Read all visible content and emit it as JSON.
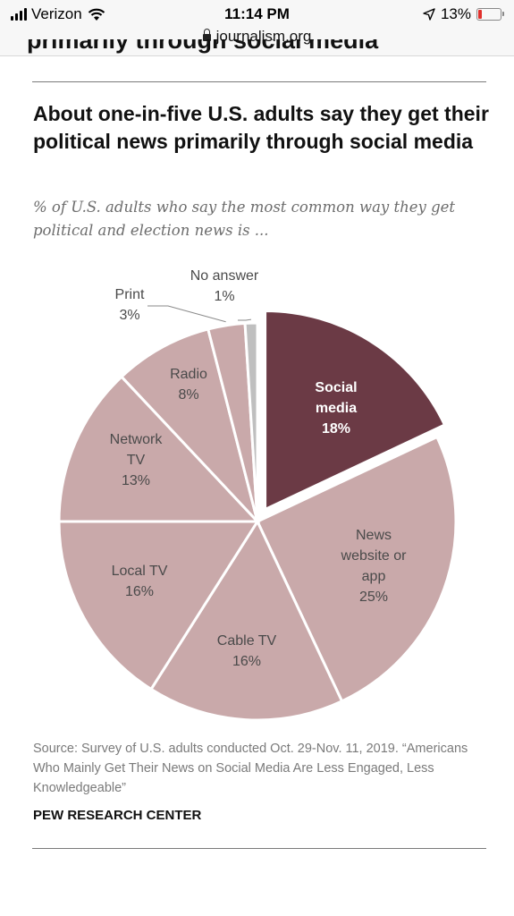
{
  "status_bar": {
    "carrier": "Verizon",
    "time": "11:14 PM",
    "battery": "13%",
    "url": "journalism.org",
    "icons": [
      "signal-icon",
      "wifi-icon",
      "location-arrow-icon",
      "battery-icon",
      "lock-icon"
    ]
  },
  "article": {
    "cut_heading": "primarily through social media"
  },
  "chart_data": {
    "type": "pie",
    "title": "About one-in-five U.S. adults say they get their political news primarily through social media",
    "subtitle": "% of U.S. adults who say the most common way they get political and election news is ...",
    "slices": [
      {
        "name": "Social media",
        "value": 18,
        "label": "18%",
        "color": "#6b3a45",
        "highlighted": true
      },
      {
        "name": "News website or app",
        "value": 25,
        "label": "25%",
        "color": "#c9a9aa"
      },
      {
        "name": "Cable TV",
        "value": 16,
        "label": "16%",
        "color": "#c9a9aa"
      },
      {
        "name": "Local TV",
        "value": 16,
        "label": "16%",
        "color": "#c9a9aa"
      },
      {
        "name": "Network TV",
        "value": 13,
        "label": "13%",
        "color": "#c9a9aa"
      },
      {
        "name": "Radio",
        "value": 8,
        "label": "8%",
        "color": "#c9a9aa"
      },
      {
        "name": "Print",
        "value": 3,
        "label": "3%",
        "color": "#c9a9aa"
      },
      {
        "name": "No answer",
        "value": 1,
        "label": "1%",
        "color": "#bfbfbf"
      }
    ],
    "source": "Source: Survey of U.S. adults conducted Oct. 29-Nov. 11, 2019. “Americans Who Mainly Get Their News on Social Media Are Less Engaged, Less Knowledgeable”",
    "organization": "PEW RESEARCH CENTER"
  }
}
